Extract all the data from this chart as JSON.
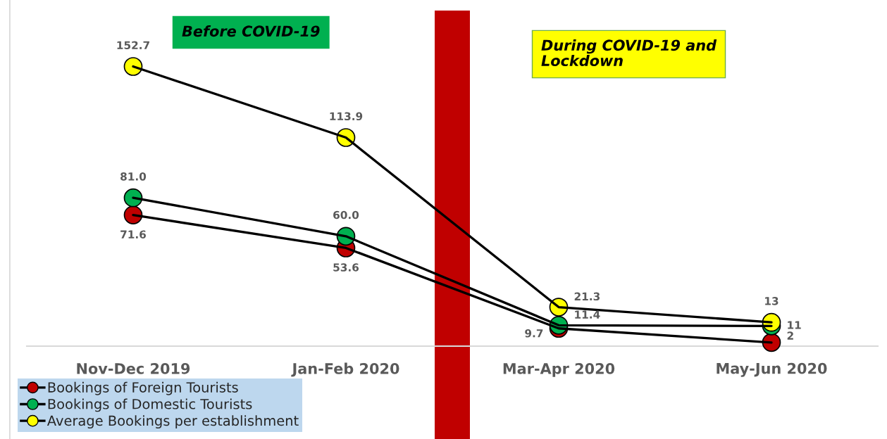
{
  "chart_data": {
    "type": "line",
    "marker": "circle",
    "line_style": "solid",
    "legend": "bottom left",
    "categories": [
      "Nov-Dec 2019",
      "Jan-Feb 2020",
      "Mar-Apr 2020",
      "May-Jun 2020"
    ],
    "series": [
      {
        "name": "Bookings of Foreign Tourists",
        "color": "#c00000",
        "values": [
          71.6,
          53.6,
          9.7,
          2
        ],
        "value_labels": [
          "71.6",
          "53.6",
          "9.7",
          "2"
        ]
      },
      {
        "name": "Bookings of Domestic Tourists",
        "color": "#00b050",
        "values": [
          81.0,
          60.0,
          11.4,
          11
        ],
        "value_labels": [
          "81.0",
          "60.0",
          "11.4",
          "11"
        ]
      },
      {
        "name": "Average Bookings per establishment",
        "color": "#ffff00",
        "values": [
          152.7,
          113.9,
          21.3,
          13
        ],
        "value_labels": [
          "152.7",
          "113.9",
          "21.3",
          "13"
        ]
      }
    ],
    "annotations": [
      "Before COVID-19",
      "During COVID-19 and\nLockdown"
    ]
  }
}
